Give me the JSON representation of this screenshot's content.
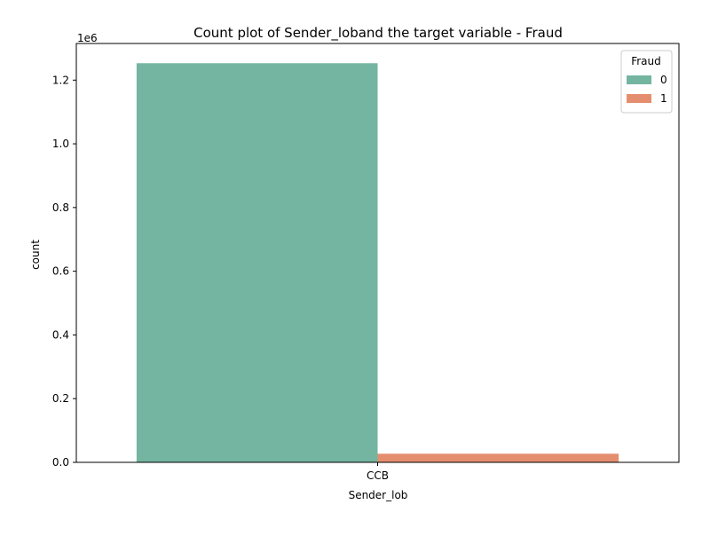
{
  "chart_data": {
    "type": "bar",
    "title": "Count plot of Sender_loband the target variable - Fraud",
    "xlabel": "Sender_lob",
    "ylabel": "count",
    "categories": [
      "CCB"
    ],
    "series": [
      {
        "name": "0",
        "values": [
          1253000
        ],
        "color": "#73b5a0"
      },
      {
        "name": "1",
        "values": [
          27000
        ],
        "color": "#e58e6f"
      }
    ],
    "ylim": [
      0,
      1315000
    ],
    "y_ticks": [
      0,
      200000,
      400000,
      600000,
      800000,
      1000000,
      1200000
    ],
    "y_tick_labels": [
      "0.0",
      "0.2",
      "0.4",
      "0.6",
      "0.8",
      "1.0",
      "1.2"
    ],
    "y_offset_label": "1e6",
    "legend": {
      "title": "Fraud",
      "position": "top-right",
      "entries": [
        "0",
        "1"
      ]
    },
    "grid": false
  }
}
